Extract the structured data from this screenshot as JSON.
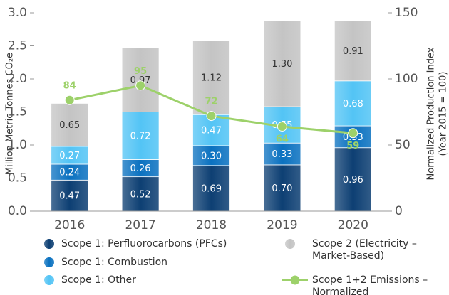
{
  "chart_data": {
    "type": "bar",
    "stacked": true,
    "y_label": "Million Metric Tonnes CO₂e",
    "y2_label": [
      "Normalized Production Index",
      "(Year 2015 = 100)"
    ],
    "categories": [
      "2016",
      "2017",
      "2018",
      "2019",
      "2020"
    ],
    "series": [
      {
        "name": "Scope 1: Perfluorocarbons (PFCs)",
        "color": "#0d3f73",
        "values": [
          0.47,
          0.52,
          0.69,
          0.7,
          0.96
        ],
        "value_labels": [
          "0.47",
          "0.52",
          "0.69",
          "0.70",
          "0.96"
        ]
      },
      {
        "name": "Scope 1: Combustion",
        "color": "#0a71c0",
        "values": [
          0.24,
          0.26,
          0.3,
          0.33,
          0.33
        ],
        "value_labels": [
          "0.24",
          "0.26",
          "0.30",
          "0.33",
          "0.33"
        ]
      },
      {
        "name": "Scope 1: Other",
        "color": "#53c4f5",
        "values": [
          0.27,
          0.72,
          0.47,
          0.55,
          0.68
        ],
        "value_labels": [
          "0.27",
          "0.72",
          "0.47",
          "0.55",
          "0.68"
        ]
      },
      {
        "name": "Scope 2 (Electricity – Market-Based)",
        "color": "#c4c4c4",
        "values": [
          0.65,
          0.97,
          1.12,
          1.3,
          0.91
        ],
        "value_labels": [
          "0.65",
          "0.97",
          "1.12",
          "1.30",
          "0.91"
        ]
      },
      {
        "name": "Scope 1+2 Emissions – Normalized",
        "color": "#9dd16a",
        "type": "line",
        "axis": "y2",
        "values": [
          84,
          95,
          72,
          64,
          59
        ]
      }
    ],
    "ylim": [
      0,
      3
    ],
    "yticks": [
      {
        "value": 0,
        "label": "0.0"
      },
      {
        "value": 0.5,
        "label": "0.5"
      },
      {
        "value": 1,
        "label": "1.0"
      },
      {
        "value": 1.5,
        "label": "1.5"
      },
      {
        "value": 2,
        "label": "2.0"
      },
      {
        "value": 2.5,
        "label": "2.5"
      },
      {
        "value": 3,
        "label": "3.0"
      }
    ],
    "y2lim": [
      0,
      150
    ],
    "y2ticks": [
      0,
      50,
      100,
      150
    ],
    "grid": false,
    "legend": "bottom"
  }
}
